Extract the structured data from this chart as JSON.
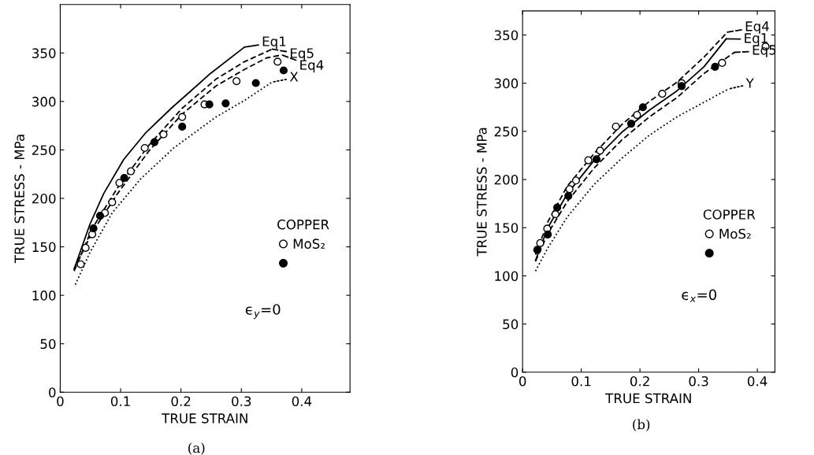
{
  "chart_data": [
    {
      "type": "line",
      "xlabel": "TRUE STRAIN",
      "ylabel": "TRUE STRESS - MPa",
      "legend_title": "COPPER",
      "legend": "right",
      "annotations": [
        "ϵ$_{y}$=0",
        "(a)"
      ],
      "xlim": [
        0,
        0.48
      ],
      "xticks": [
        0,
        0.1,
        0.2,
        0.3,
        0.4
      ],
      "ylim": [
        0,
        400
      ],
      "yticks": [
        0,
        50,
        100,
        150,
        200,
        250,
        300,
        350
      ],
      "grid": false,
      "series": [
        {
          "name": "Eq1",
          "line_style": "solid",
          "marker": "none",
          "color": "#000000",
          "x": [
            0.023,
            0.049,
            0.072,
            0.105,
            0.142,
            0.184,
            0.249,
            0.305
          ],
          "values": [
            127,
            173,
            205,
            240,
            268,
            293,
            329,
            356
          ]
        },
        {
          "name": "Eq5",
          "line_style": "dashed",
          "marker": "none",
          "color": "#000000",
          "x": [
            0.023,
            0.053,
            0.095,
            0.147,
            0.202,
            0.258,
            0.305,
            0.351
          ],
          "values": [
            125,
            169,
            211,
            255,
            293,
            323,
            341,
            354
          ]
        },
        {
          "name": "Eq4",
          "line_style": "dashed",
          "marker": "none",
          "color": "#000000",
          "x": [
            0.023,
            0.053,
            0.095,
            0.147,
            0.202,
            0.258,
            0.305,
            0.342,
            0.367
          ],
          "values": [
            127,
            165,
            205,
            249,
            287,
            316,
            333,
            345,
            348
          ]
        },
        {
          "name": "X",
          "line_style": "dotted",
          "marker": "none",
          "color": "#000000",
          "x": [
            0.025,
            0.049,
            0.086,
            0.133,
            0.188,
            0.258,
            0.305,
            0.351
          ],
          "values": [
            111,
            144,
            185,
            220,
            252,
            284,
            301,
            320
          ]
        },
        {
          "name": "MoS₂",
          "type": "scatter",
          "marker": "circle",
          "color": "#ffffff",
          "x": [
            0.034,
            0.042,
            0.053,
            0.074,
            0.086,
            0.098,
            0.117,
            0.14,
            0.171,
            0.202,
            0.239,
            0.292,
            0.36
          ],
          "values": [
            132,
            149,
            163,
            185,
            196,
            216,
            228,
            252,
            266,
            284,
            297,
            321,
            341
          ]
        },
        {
          "type": "scatter",
          "marker": "circle",
          "color": "#000000",
          "x": [
            0.055,
            0.066,
            0.106,
            0.156,
            0.202,
            0.247,
            0.274,
            0.324,
            0.37
          ],
          "values": [
            169,
            182,
            221,
            258,
            274,
            297,
            298,
            319,
            332
          ]
        }
      ]
    },
    {
      "type": "line",
      "xlabel": "TRUE STRAIN",
      "ylabel": "TRUE STRESS - MPa",
      "legend_title": "COPPER",
      "legend": "right",
      "annotations": [
        "ϵ$_{x}$=0",
        "(b)"
      ],
      "xlim": [
        0,
        0.43
      ],
      "xticks": [
        0,
        0.1,
        0.2,
        0.3,
        0.4
      ],
      "ylim": [
        0,
        375
      ],
      "yticks": [
        0,
        50,
        100,
        150,
        200,
        250,
        300,
        350
      ],
      "grid": false,
      "series": [
        {
          "name": "Eq4",
          "line_style": "dashed",
          "marker": "none",
          "color": "#000000",
          "x": [
            0.022,
            0.043,
            0.076,
            0.122,
            0.169,
            0.216,
            0.263,
            0.309,
            0.349
          ],
          "values": [
            122,
            156,
            193,
            227,
            257,
            281,
            301,
            327,
            353
          ]
        },
        {
          "name": "Eq1",
          "line_style": "solid",
          "marker": "none",
          "color": "#000000",
          "x": [
            0.022,
            0.043,
            0.076,
            0.122,
            0.169,
            0.216,
            0.263,
            0.309,
            0.347
          ],
          "values": [
            116,
            150,
            185,
            220,
            249,
            272,
            292,
            317,
            346
          ]
        },
        {
          "name": "Eq5",
          "line_style": "dashed",
          "marker": "none",
          "color": "#000000",
          "x": [
            0.022,
            0.043,
            0.076,
            0.122,
            0.169,
            0.216,
            0.263,
            0.309,
            0.361
          ],
          "values": [
            115,
            144,
            177,
            212,
            241,
            265,
            285,
            310,
            332
          ]
        },
        {
          "name": "Y",
          "line_style": "dotted",
          "marker": "none",
          "color": "#000000",
          "x": [
            0.022,
            0.043,
            0.076,
            0.122,
            0.169,
            0.216,
            0.263,
            0.351
          ],
          "values": [
            105,
            129,
            161,
            195,
            222,
            246,
            265,
            294
          ]
        },
        {
          "name": "MoS₂",
          "type": "scatter",
          "marker": "circle",
          "color": "#ffffff",
          "x": [
            0.03,
            0.042,
            0.056,
            0.08,
            0.091,
            0.112,
            0.132,
            0.159,
            0.195,
            0.238,
            0.271,
            0.34,
            0.414
          ],
          "values": [
            134,
            149,
            164,
            190,
            199,
            220,
            230,
            255,
            267,
            289,
            300,
            321,
            338
          ]
        },
        {
          "type": "scatter",
          "marker": "circle",
          "color": "#000000",
          "x": [
            0.025,
            0.043,
            0.059,
            0.078,
            0.126,
            0.185,
            0.205,
            0.271,
            0.328
          ],
          "values": [
            127,
            143,
            171,
            183,
            221,
            258,
            275,
            297,
            317
          ]
        }
      ]
    }
  ]
}
